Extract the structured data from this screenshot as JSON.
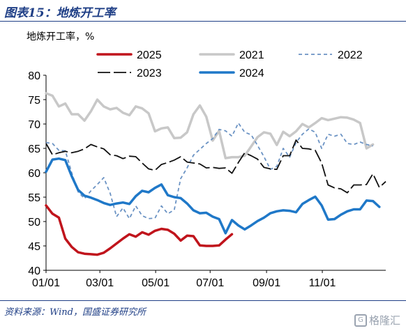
{
  "figure": {
    "title": "图表15：地炼开工率",
    "source": "资料来源：Wind，国盛证券研究所",
    "watermark": "格隆汇"
  },
  "chart_data": {
    "type": "line",
    "ylabel": "地炼开工率，%",
    "xlabel": "",
    "ylim": [
      40,
      80
    ],
    "yticks": [
      40,
      45,
      50,
      55,
      60,
      65,
      70,
      75,
      80
    ],
    "xticks": [
      "01/01",
      "03/01",
      "05/01",
      "07/01",
      "09/01",
      "11/01"
    ],
    "x_unit": "week_of_year",
    "grid": false,
    "legend_position": "top",
    "series": [
      {
        "name": "2025",
        "color": "#c0141c",
        "dash": "solid",
        "width": 3.5,
        "points": [
          [
            1,
            53.3
          ],
          [
            2,
            51.6
          ],
          [
            3,
            50.8
          ],
          [
            4,
            46.5
          ],
          [
            5,
            44.8
          ],
          [
            6,
            43.7
          ],
          [
            7,
            43.4
          ],
          [
            8,
            43.3
          ],
          [
            9,
            43.2
          ],
          [
            10,
            43.6
          ],
          [
            11,
            44.5
          ],
          [
            12,
            45.5
          ],
          [
            13,
            46.5
          ],
          [
            14,
            47.4
          ],
          [
            15,
            46.9
          ],
          [
            16,
            47.8
          ],
          [
            17,
            47.3
          ],
          [
            18,
            48.1
          ],
          [
            19,
            48.5
          ],
          [
            20,
            48.3
          ],
          [
            21,
            47.5
          ],
          [
            22,
            46.1
          ],
          [
            23,
            47.1
          ],
          [
            24,
            47.0
          ],
          [
            25,
            45.1
          ],
          [
            26,
            45.0
          ],
          [
            27,
            45.0
          ],
          [
            28,
            45.1
          ],
          [
            29,
            46.3
          ],
          [
            30,
            47.4
          ]
        ]
      },
      {
        "name": "2021",
        "color": "#c8c8c8",
        "dash": "solid",
        "width": 3.5,
        "points": [
          [
            1,
            76.3
          ],
          [
            2,
            75.8
          ],
          [
            3,
            73.6
          ],
          [
            4,
            74.2
          ],
          [
            5,
            72.0
          ],
          [
            6,
            72.0
          ],
          [
            7,
            70.7
          ],
          [
            8,
            72.6
          ],
          [
            9,
            75.0
          ],
          [
            10,
            73.6
          ],
          [
            11,
            73.0
          ],
          [
            12,
            73.3
          ],
          [
            13,
            72.3
          ],
          [
            14,
            71.8
          ],
          [
            15,
            73.6
          ],
          [
            16,
            73.2
          ],
          [
            17,
            72.2
          ],
          [
            18,
            68.5
          ],
          [
            19,
            69.1
          ],
          [
            20,
            69.3
          ],
          [
            21,
            67.1
          ],
          [
            22,
            67.2
          ],
          [
            23,
            68.3
          ],
          [
            24,
            72.0
          ],
          [
            25,
            73.8
          ],
          [
            26,
            71.5
          ],
          [
            27,
            66.6
          ],
          [
            28,
            68.6
          ],
          [
            29,
            63.0
          ],
          [
            30,
            63.2
          ],
          [
            31,
            63.2
          ],
          [
            32,
            63.5
          ],
          [
            33,
            65.4
          ],
          [
            34,
            67.3
          ],
          [
            35,
            68.3
          ],
          [
            36,
            68.0
          ],
          [
            37,
            65.7
          ],
          [
            38,
            68.4
          ],
          [
            39,
            67.5
          ],
          [
            40,
            68.5
          ],
          [
            41,
            70.0
          ],
          [
            42,
            69.3
          ],
          [
            43,
            70.2
          ],
          [
            44,
            71.2
          ],
          [
            45,
            70.8
          ],
          [
            46,
            71.1
          ],
          [
            47,
            71.4
          ],
          [
            48,
            71.3
          ],
          [
            49,
            70.9
          ],
          [
            50,
            70.2
          ],
          [
            51,
            65.0
          ],
          [
            52,
            65.8
          ]
        ]
      },
      {
        "name": "2022",
        "color": "#6b93c4",
        "dash": "5,4",
        "width": 1.8,
        "points": [
          [
            1,
            66.2
          ],
          [
            2,
            66.0
          ],
          [
            3,
            64.6
          ],
          [
            4,
            64.5
          ],
          [
            5,
            60.0
          ],
          [
            6,
            56.1
          ],
          [
            7,
            54.7
          ],
          [
            8,
            56.3
          ],
          [
            9,
            57.6
          ],
          [
            10,
            59.0
          ],
          [
            11,
            55.8
          ],
          [
            12,
            51.0
          ],
          [
            13,
            52.8
          ],
          [
            14,
            50.6
          ],
          [
            15,
            53.2
          ],
          [
            16,
            51.2
          ],
          [
            17,
            50.6
          ],
          [
            18,
            50.7
          ],
          [
            19,
            53.2
          ],
          [
            20,
            51.6
          ],
          [
            21,
            52.4
          ],
          [
            22,
            58.8
          ],
          [
            23,
            61.0
          ],
          [
            24,
            63.6
          ],
          [
            25,
            64.8
          ],
          [
            26,
            66.0
          ],
          [
            27,
            67.0
          ],
          [
            28,
            68.9
          ],
          [
            29,
            68.6
          ],
          [
            30,
            67.5
          ],
          [
            31,
            70.2
          ],
          [
            32,
            68.3
          ],
          [
            33,
            67.8
          ],
          [
            34,
            65.6
          ],
          [
            35,
            63.3
          ],
          [
            36,
            60.7
          ],
          [
            37,
            61.3
          ],
          [
            38,
            65.0
          ],
          [
            39,
            63.2
          ],
          [
            40,
            66.2
          ],
          [
            41,
            67.9
          ],
          [
            42,
            69.0
          ],
          [
            43,
            68.3
          ],
          [
            44,
            65.0
          ],
          [
            45,
            67.9
          ],
          [
            46,
            67.5
          ],
          [
            47,
            67.9
          ],
          [
            48,
            66.0
          ],
          [
            49,
            65.8
          ],
          [
            50,
            66.3
          ],
          [
            51,
            65.8
          ],
          [
            52,
            65.5
          ]
        ]
      },
      {
        "name": "2023",
        "color": "#111111",
        "dash": "18,5",
        "width": 1.8,
        "points": [
          [
            1,
            66.0
          ],
          [
            2,
            63.7
          ],
          [
            3,
            64.1
          ],
          [
            4,
            64.4
          ],
          [
            5,
            64.1
          ],
          [
            6,
            64.4
          ],
          [
            7,
            64.9
          ],
          [
            8,
            65.8
          ],
          [
            9,
            65.3
          ],
          [
            10,
            64.9
          ],
          [
            11,
            63.7
          ],
          [
            12,
            63.5
          ],
          [
            13,
            62.9
          ],
          [
            14,
            63.4
          ],
          [
            15,
            63.3
          ],
          [
            16,
            62.0
          ],
          [
            17,
            60.8
          ],
          [
            18,
            60.5
          ],
          [
            19,
            61.7
          ],
          [
            20,
            62.1
          ],
          [
            21,
            62.6
          ],
          [
            22,
            63.3
          ],
          [
            23,
            62.2
          ],
          [
            24,
            62.0
          ],
          [
            25,
            61.8
          ],
          [
            26,
            61.0
          ],
          [
            27,
            61.1
          ],
          [
            28,
            60.9
          ],
          [
            29,
            61.0
          ],
          [
            30,
            59.9
          ],
          [
            31,
            62.1
          ],
          [
            32,
            64.1
          ],
          [
            33,
            63.5
          ],
          [
            34,
            62.8
          ],
          [
            35,
            61.1
          ],
          [
            36,
            60.8
          ],
          [
            37,
            60.7
          ],
          [
            38,
            63.5
          ],
          [
            39,
            63.5
          ],
          [
            40,
            66.7
          ],
          [
            41,
            65.0
          ],
          [
            42,
            64.9
          ],
          [
            43,
            64.6
          ],
          [
            44,
            62.0
          ],
          [
            45,
            57.5
          ],
          [
            46,
            56.9
          ],
          [
            47,
            56.7
          ],
          [
            48,
            55.9
          ],
          [
            49,
            57.5
          ],
          [
            50,
            57.5
          ],
          [
            51,
            57.6
          ],
          [
            52,
            59.8
          ],
          [
            53,
            57.0
          ],
          [
            54,
            58.2
          ]
        ]
      },
      {
        "name": "2024",
        "color": "#1f78c8",
        "dash": "solid",
        "width": 3.5,
        "points": [
          [
            1,
            60.2
          ],
          [
            2,
            62.7
          ],
          [
            3,
            62.9
          ],
          [
            4,
            62.6
          ],
          [
            5,
            59.3
          ],
          [
            6,
            56.5
          ],
          [
            7,
            55.3
          ],
          [
            8,
            54.9
          ],
          [
            9,
            54.4
          ],
          [
            10,
            53.8
          ],
          [
            11,
            53.4
          ],
          [
            12,
            53.7
          ],
          [
            13,
            53.9
          ],
          [
            14,
            53.6
          ],
          [
            15,
            55.2
          ],
          [
            16,
            56.3
          ],
          [
            17,
            56.0
          ],
          [
            18,
            56.9
          ],
          [
            19,
            57.6
          ],
          [
            20,
            55.4
          ],
          [
            21,
            55.0
          ],
          [
            22,
            54.8
          ],
          [
            23,
            53.7
          ],
          [
            24,
            52.3
          ],
          [
            25,
            51.7
          ],
          [
            26,
            51.8
          ],
          [
            27,
            51.0
          ],
          [
            28,
            50.5
          ],
          [
            29,
            47.6
          ],
          [
            30,
            50.3
          ],
          [
            31,
            49.2
          ],
          [
            32,
            48.4
          ],
          [
            33,
            49.2
          ],
          [
            34,
            50.1
          ],
          [
            35,
            50.8
          ],
          [
            36,
            51.7
          ],
          [
            37,
            52.1
          ],
          [
            38,
            52.3
          ],
          [
            39,
            52.2
          ],
          [
            40,
            51.9
          ],
          [
            41,
            53.6
          ],
          [
            42,
            54.4
          ],
          [
            43,
            55.1
          ],
          [
            44,
            53.3
          ],
          [
            45,
            50.4
          ],
          [
            46,
            50.5
          ],
          [
            47,
            51.4
          ],
          [
            48,
            52.1
          ],
          [
            49,
            52.5
          ],
          [
            50,
            52.5
          ],
          [
            51,
            54.3
          ],
          [
            52,
            54.2
          ],
          [
            53,
            53.0
          ]
        ]
      }
    ]
  }
}
